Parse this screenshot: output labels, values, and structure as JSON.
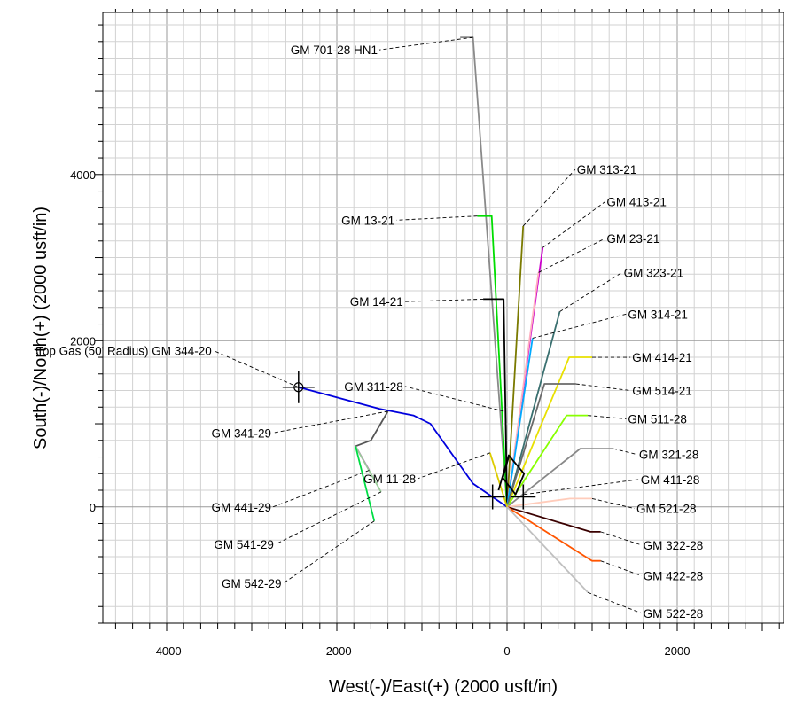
{
  "chart_data": {
    "type": "line",
    "xlabel": "West(-)/East(+) (2000 usft/in)",
    "ylabel": "South(-)/North(+) (2000 usft/in)",
    "xlim": [
      -4750,
      3250
    ],
    "ylim": [
      -1400,
      5950
    ],
    "x_ticks": [
      -4000,
      -2000,
      0,
      2000
    ],
    "y_ticks": [
      0,
      2000,
      4000
    ],
    "grid": true,
    "series": [
      {
        "color": "#8a8a8a",
        "points": [
          [
            0,
            0
          ],
          [
            -400,
            5650
          ],
          [
            -550,
            5650
          ]
        ]
      },
      {
        "color": "#00dd00",
        "points": [
          [
            0,
            0
          ],
          [
            -180,
            3500
          ],
          [
            -350,
            3500
          ]
        ]
      },
      {
        "color": "#7a7a00",
        "points": [
          [
            0,
            0
          ],
          [
            190,
            3380
          ]
        ]
      },
      {
        "color": "#cc00cc",
        "points": [
          [
            0,
            0
          ],
          [
            420,
            3120
          ]
        ]
      },
      {
        "color": "#ffb0c0",
        "points": [
          [
            0,
            0
          ],
          [
            370,
            2820
          ]
        ]
      },
      {
        "color": "#000000",
        "points": [
          [
            0,
            0
          ],
          [
            -40,
            2500
          ],
          [
            -280,
            2500
          ]
        ]
      },
      {
        "color": "#00aaff",
        "points": [
          [
            0,
            0
          ],
          [
            300,
            2030
          ]
        ]
      },
      {
        "color": "#3a7070",
        "points": [
          [
            0,
            0
          ],
          [
            620,
            2350
          ]
        ]
      },
      {
        "color": "#e8e000",
        "points": [
          [
            0,
            0
          ],
          [
            730,
            1800
          ],
          [
            1000,
            1800
          ]
        ]
      },
      {
        "color": "#6a6a6a",
        "points": [
          [
            0,
            0
          ],
          [
            440,
            1480
          ],
          [
            810,
            1480
          ]
        ]
      },
      {
        "color": "#88ff00",
        "points": [
          [
            0,
            0
          ],
          [
            700,
            1100
          ],
          [
            950,
            1100
          ]
        ]
      },
      {
        "color": "#0000dd",
        "points": [
          [
            0,
            0
          ],
          [
            -400,
            280
          ],
          [
            -900,
            1000
          ],
          [
            -1100,
            1100
          ],
          [
            -1500,
            1180
          ],
          [
            -2450,
            1440
          ]
        ]
      },
      {
        "color": "#555555",
        "points": [
          [
            -1400,
            1150
          ],
          [
            -1600,
            800
          ],
          [
            -1780,
            730
          ]
        ]
      },
      {
        "color": "#cc00cc",
        "points": [
          [
            -1780,
            730
          ],
          [
            -1620,
            440
          ]
        ]
      },
      {
        "color": "#99cc99",
        "points": [
          [
            -1780,
            730
          ],
          [
            -1480,
            180
          ]
        ]
      },
      {
        "color": "#00dd44",
        "points": [
          [
            -1780,
            730
          ],
          [
            -1560,
            -170
          ]
        ]
      },
      {
        "color": "#888888",
        "points": [
          [
            0,
            0
          ],
          [
            860,
            700
          ],
          [
            1250,
            700
          ]
        ]
      },
      {
        "color": "#ffccbb",
        "points": [
          [
            0,
            0
          ],
          [
            740,
            100
          ],
          [
            1000,
            100
          ]
        ]
      },
      {
        "color": "#3a0000",
        "points": [
          [
            0,
            0
          ],
          [
            980,
            -300
          ],
          [
            1100,
            -300
          ]
        ]
      },
      {
        "color": "#ff5500",
        "points": [
          [
            0,
            0
          ],
          [
            1000,
            -650
          ],
          [
            1100,
            -650
          ]
        ]
      },
      {
        "color": "#c0c0c0",
        "points": [
          [
            0,
            0
          ],
          [
            950,
            -1030
          ]
        ]
      },
      {
        "color": "#ddcc00",
        "points": [
          [
            0,
            0
          ],
          [
            -200,
            650
          ]
        ]
      },
      {
        "color": "#000000",
        "points": [
          [
            -100,
            200
          ],
          [
            20,
            620
          ],
          [
            200,
            400
          ],
          [
            100,
            150
          ],
          [
            -50,
            350
          ],
          [
            20,
            600
          ]
        ]
      }
    ],
    "annotations": [
      {
        "text": "GM 701-28 HN1",
        "anchor": [
          -400,
          5650
        ],
        "label": [
          -1500,
          5500
        ]
      },
      {
        "text": "GM  313-21",
        "anchor": [
          190,
          3380
        ],
        "label": [
          800,
          4060
        ]
      },
      {
        "text": "GM  413-21",
        "anchor": [
          420,
          3120
        ],
        "label": [
          1150,
          3670
        ]
      },
      {
        "text": "GM  23-21",
        "anchor": [
          370,
          2820
        ],
        "label": [
          1150,
          3230
        ]
      },
      {
        "text": "GM  13-21",
        "anchor": [
          -350,
          3500
        ],
        "label": [
          -1300,
          3450
        ]
      },
      {
        "text": "GM  323-21",
        "anchor": [
          620,
          2350
        ],
        "label": [
          1350,
          2820
        ]
      },
      {
        "text": "GM  14-21",
        "anchor": [
          -280,
          2500
        ],
        "label": [
          -1200,
          2470
        ]
      },
      {
        "text": "GM  314-21",
        "anchor": [
          300,
          2030
        ],
        "label": [
          1400,
          2320
        ]
      },
      {
        "text": "Top Gas (50' Radius) GM 344-20",
        "anchor": [
          -2450,
          1440
        ],
        "label": [
          -3450,
          1880
        ]
      },
      {
        "text": "GM  414-21",
        "anchor": [
          1000,
          1800
        ],
        "label": [
          1450,
          1800
        ]
      },
      {
        "text": "GM  311-28",
        "anchor": [
          -40,
          1150
        ],
        "label": [
          -1200,
          1450
        ]
      },
      {
        "text": "GM  514-21",
        "anchor": [
          810,
          1480
        ],
        "label": [
          1450,
          1400
        ]
      },
      {
        "text": "GM  511-28",
        "anchor": [
          950,
          1100
        ],
        "label": [
          1400,
          1060
        ]
      },
      {
        "text": "GM  341-29",
        "anchor": [
          -1400,
          1150
        ],
        "label": [
          -2750,
          890
        ]
      },
      {
        "text": "GM  321-28",
        "anchor": [
          1250,
          700
        ],
        "label": [
          1530,
          630
        ]
      },
      {
        "text": "GM  11-28",
        "anchor": [
          -200,
          650
        ],
        "label": [
          -1050,
          340
        ]
      },
      {
        "text": "GM  411-28",
        "anchor": [
          200,
          150
        ],
        "label": [
          1550,
          330
        ]
      },
      {
        "text": "GM  441-29",
        "anchor": [
          -1620,
          440
        ],
        "label": [
          -2750,
          0
        ]
      },
      {
        "text": "GM  521-28",
        "anchor": [
          1000,
          100
        ],
        "label": [
          1500,
          -20
        ]
      },
      {
        "text": "GM  322-28",
        "anchor": [
          1100,
          -300
        ],
        "label": [
          1580,
          -460
        ]
      },
      {
        "text": "GM  541-29",
        "anchor": [
          -1480,
          180
        ],
        "label": [
          -2720,
          -450
        ]
      },
      {
        "text": "GM  422-28",
        "anchor": [
          1100,
          -650
        ],
        "label": [
          1580,
          -830
        ]
      },
      {
        "text": "GM  542-29",
        "anchor": [
          -1560,
          -170
        ],
        "label": [
          -2630,
          -920
        ]
      },
      {
        "text": "GM  522-28",
        "anchor": [
          950,
          -1030
        ],
        "label": [
          1580,
          -1280
        ]
      }
    ],
    "markers": [
      {
        "type": "target-circle",
        "at": [
          -2450,
          1440
        ]
      },
      {
        "type": "cross",
        "at": [
          -170,
          120
        ]
      },
      {
        "type": "cross",
        "at": [
          190,
          120
        ]
      }
    ]
  }
}
